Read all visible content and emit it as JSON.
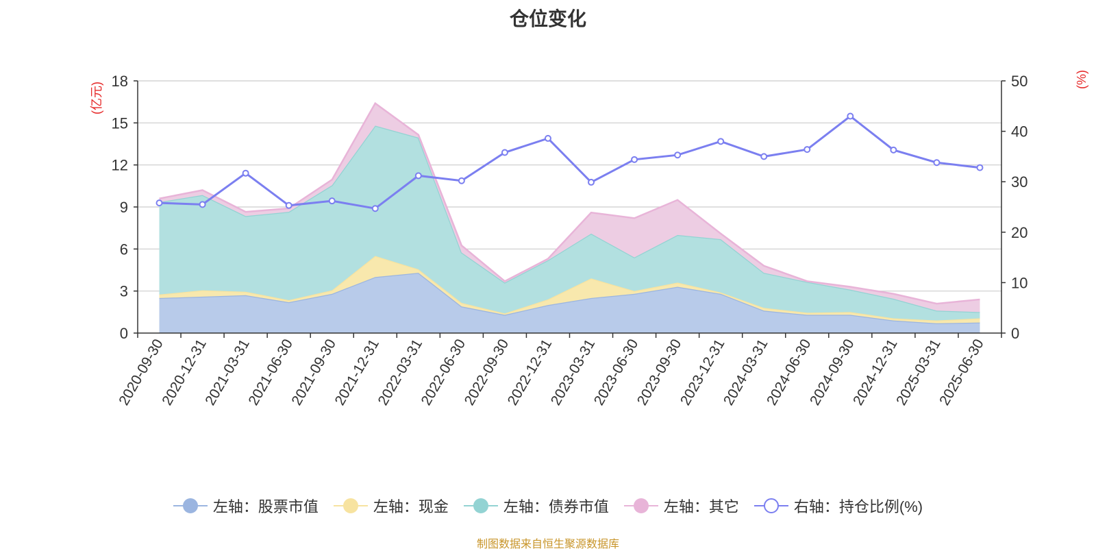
{
  "chart_data": {
    "type": "area",
    "title": "仓位变化",
    "left_unit": "(亿元)",
    "right_unit": "(%)",
    "ylim_left": [
      0,
      18
    ],
    "ylim_right": [
      0,
      50
    ],
    "left_ticks": [
      "0",
      "3",
      "6",
      "9",
      "12",
      "15",
      "18"
    ],
    "right_ticks": [
      "0",
      "10",
      "20",
      "30",
      "40",
      "50"
    ],
    "categories": [
      "2020-09-30",
      "2020-12-31",
      "2021-03-31",
      "2021-06-30",
      "2021-09-30",
      "2021-12-31",
      "2022-03-31",
      "2022-06-30",
      "2022-09-30",
      "2022-12-31",
      "2023-03-31",
      "2023-06-30",
      "2023-09-30",
      "2023-12-31",
      "2024-03-31",
      "2024-06-30",
      "2024-09-30",
      "2024-12-31",
      "2025-03-31",
      "2025-06-30"
    ],
    "stacked_series": [
      {
        "name": "左轴：股票市值",
        "color": "#9bb5e0",
        "fill": "#b8cbea",
        "values": [
          2.5,
          2.6,
          2.7,
          2.2,
          2.8,
          4.0,
          4.3,
          1.9,
          1.3,
          2.0,
          2.5,
          2.8,
          3.3,
          2.8,
          1.6,
          1.3,
          1.3,
          0.9,
          0.7,
          0.75
        ]
      },
      {
        "name": "左轴：现金",
        "color": "#f7e3a0",
        "fill": "#f8e8ad",
        "values": [
          0.25,
          0.45,
          0.25,
          0.15,
          0.25,
          1.5,
          0.25,
          0.25,
          0.1,
          0.4,
          1.4,
          0.2,
          0.3,
          0.1,
          0.2,
          0.15,
          0.2,
          0.15,
          0.2,
          0.3
        ]
      },
      {
        "name": "左轴：债券市值",
        "color": "#93d3d3",
        "fill": "#b2e0e0",
        "values": [
          6.6,
          6.8,
          5.4,
          6.3,
          7.5,
          9.3,
          9.4,
          3.6,
          2.2,
          2.8,
          3.2,
          2.4,
          3.4,
          3.8,
          2.5,
          2.2,
          1.6,
          1.4,
          0.7,
          0.45
        ]
      },
      {
        "name": "左轴：其它",
        "color": "#e8b4d8",
        "fill": "#edcde3",
        "values": [
          0.25,
          0.35,
          0.3,
          0.25,
          0.4,
          1.6,
          0.2,
          0.5,
          0.1,
          0.1,
          1.5,
          2.8,
          2.5,
          0.4,
          0.5,
          0.05,
          0.2,
          0.35,
          0.5,
          0.9
        ]
      }
    ],
    "line_series": {
      "name": "右轴：持仓比例(%)",
      "axis": "right",
      "color": "#7b7ff0",
      "values": [
        25.8,
        25.5,
        31.7,
        25.3,
        26.2,
        24.7,
        31.2,
        30.2,
        35.8,
        38.6,
        29.9,
        34.4,
        35.3,
        38.0,
        35.0,
        36.4,
        43.0,
        36.3,
        33.8,
        32.8
      ]
    },
    "grid": true,
    "legend_position": "bottom"
  },
  "source_text": "制图数据来自恒生聚源数据库"
}
